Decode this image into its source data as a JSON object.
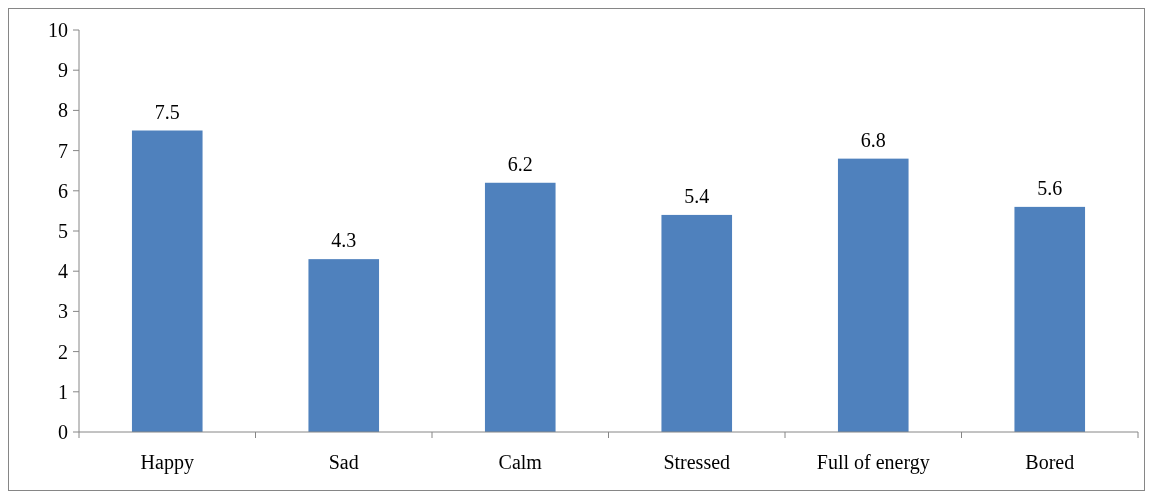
{
  "chart_data": {
    "type": "bar",
    "categories": [
      "Happy",
      "Sad",
      "Calm",
      "Stressed",
      "Full of energy",
      "Bored"
    ],
    "values": [
      7.5,
      4.3,
      6.2,
      5.4,
      6.8,
      5.6
    ],
    "color": "#4f81bd",
    "ylim": [
      0,
      10
    ],
    "yticks": [
      0,
      1,
      2,
      3,
      4,
      5,
      6,
      7,
      8,
      9,
      10
    ],
    "grid": false,
    "data_labels": true
  }
}
